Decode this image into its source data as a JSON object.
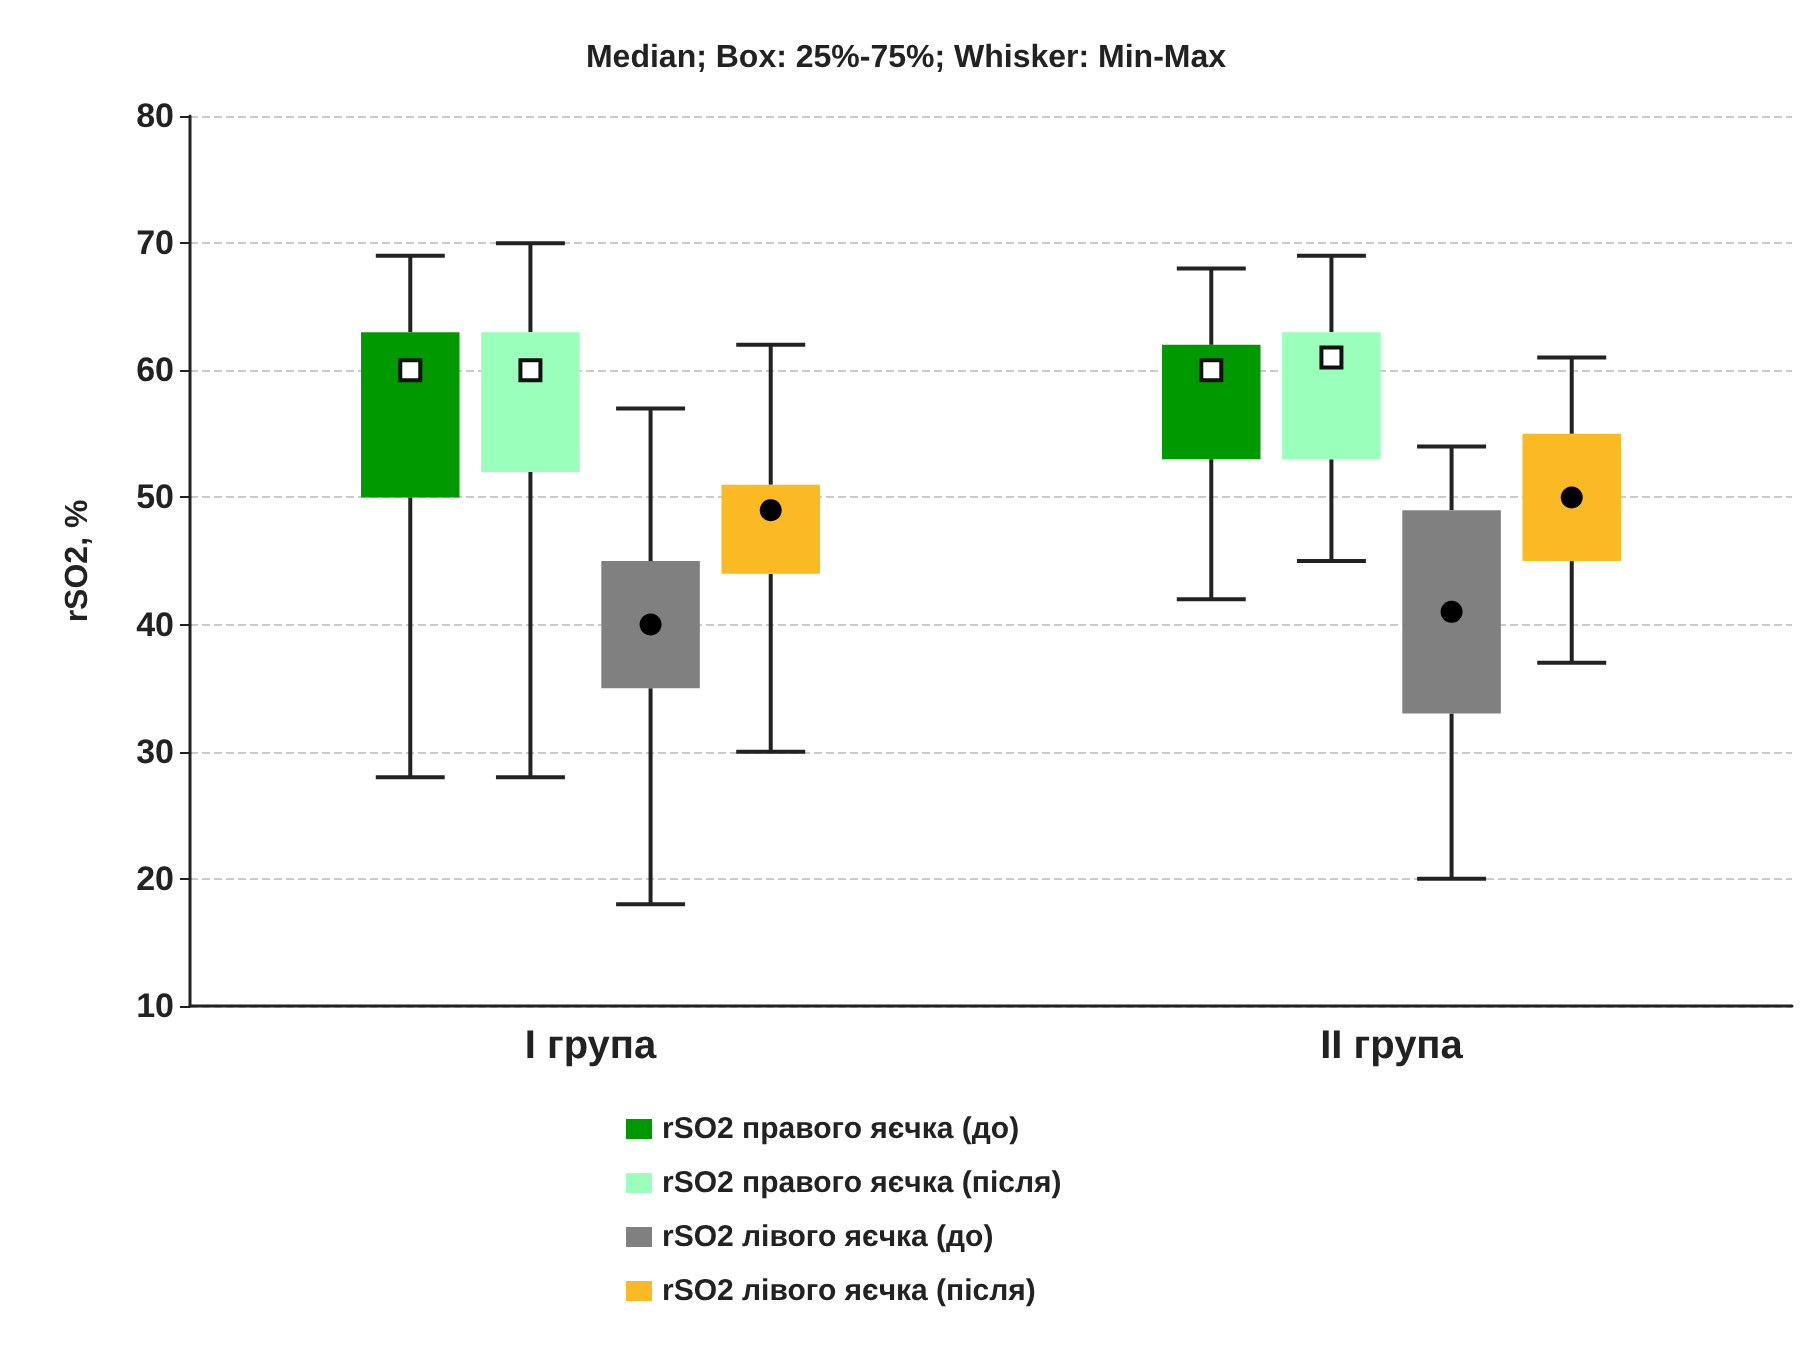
{
  "chart_data": {
    "type": "box",
    "title": "Median; Box: 25%-75%; Whisker: Min-Max",
    "ylabel": "rSO2, %",
    "categories": [
      "I група",
      "II група"
    ],
    "ylim": [
      10,
      80
    ],
    "yticks": [
      10,
      20,
      30,
      40,
      50,
      60,
      70,
      80
    ],
    "grid": "y",
    "legend": "bottom",
    "series": [
      {
        "name": "rSO2 правого яєчка (до)",
        "color": "#009900",
        "marker": "square",
        "boxes": [
          {
            "low": 28,
            "q1": 50,
            "median": 60,
            "q3": 63,
            "high": 69
          },
          {
            "low": 42,
            "q1": 53,
            "median": 60,
            "q3": 62,
            "high": 68
          }
        ]
      },
      {
        "name": "rSO2 правого яєчка (після)",
        "color": "#99ffbb",
        "marker": "square",
        "boxes": [
          {
            "low": 28,
            "q1": 52,
            "median": 60,
            "q3": 63,
            "high": 70
          },
          {
            "low": 45,
            "q1": 53,
            "median": 61,
            "q3": 63,
            "high": 69
          }
        ]
      },
      {
        "name": "rSO2 лівого яєчка (до)",
        "color": "#808080",
        "marker": "circle",
        "boxes": [
          {
            "low": 18,
            "q1": 35,
            "median": 40,
            "q3": 45,
            "high": 57
          },
          {
            "low": 20,
            "q1": 33,
            "median": 41,
            "q3": 49,
            "high": 54
          }
        ]
      },
      {
        "name": "rSO2 лівого яєчка (після)",
        "color": "#fbb924",
        "marker": "circle",
        "boxes": [
          {
            "low": 30,
            "q1": 44,
            "median": 49,
            "q3": 51,
            "high": 62
          },
          {
            "low": 37,
            "q1": 45,
            "median": 50,
            "q3": 55,
            "high": 61
          }
        ]
      }
    ]
  }
}
